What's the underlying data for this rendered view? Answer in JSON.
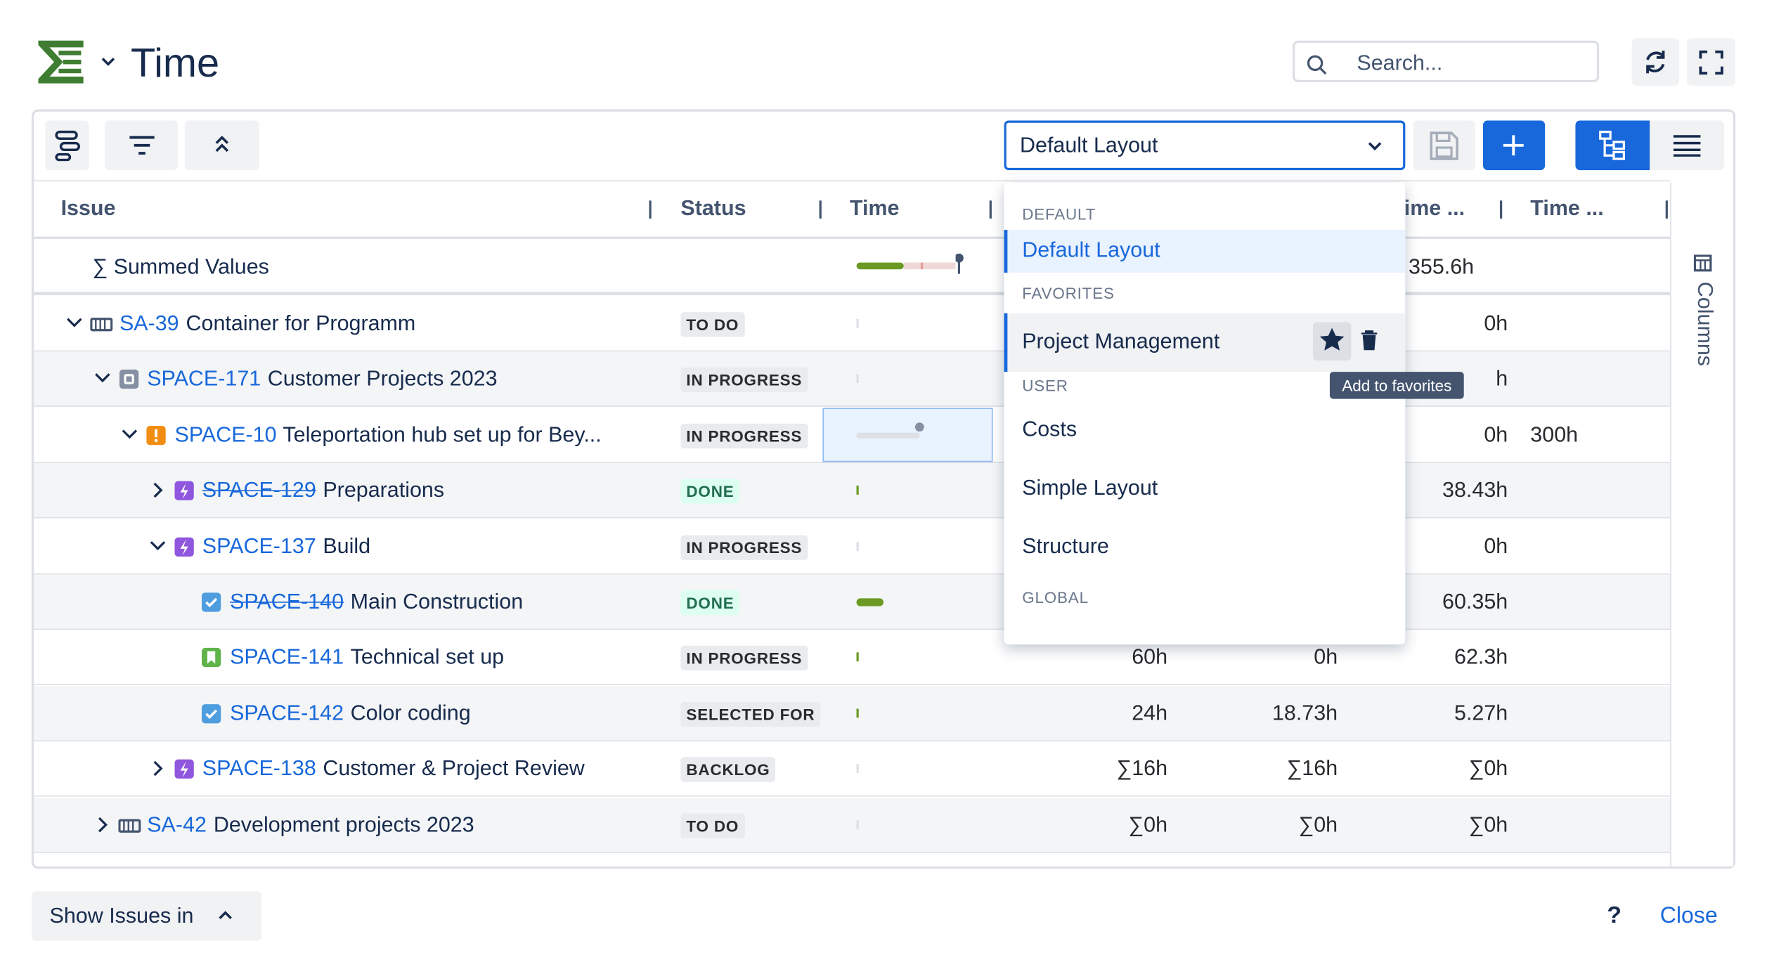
{
  "header": {
    "title": "Time",
    "search_placeholder": "Search..."
  },
  "toolbar": {
    "layout_select": "Default Layout"
  },
  "table": {
    "columns": [
      "Issue",
      "Status",
      "Time",
      "ime ...",
      "Time ..."
    ],
    "summary_row": {
      "label": "∑ Summed Values",
      "c3": "355.6h"
    },
    "rows": [
      {
        "key": "SA-39",
        "summary": "Container for Programm",
        "status": "TO DO",
        "c3": "0h"
      },
      {
        "key": "SPACE-171",
        "summary": "Customer Projects 2023",
        "status": "IN PROGRESS",
        "c3": "h"
      },
      {
        "key": "SPACE-10",
        "summary": "Teleportation hub set up for Bey...",
        "status": "IN PROGRESS",
        "c3": "0h",
        "c4": "300h"
      },
      {
        "key": "SPACE-129",
        "summary": "Preparations",
        "status": "DONE",
        "c3": "38.43h"
      },
      {
        "key": "SPACE-137",
        "summary": "Build",
        "status": "IN PROGRESS",
        "c3": "0h"
      },
      {
        "key": "SPACE-140",
        "summary": "Main Construction",
        "status": "DONE",
        "c3": "60.35h"
      },
      {
        "key": "SPACE-141",
        "summary": "Technical set up",
        "status": "IN PROGRESS",
        "c1": "60h",
        "c2": "0h",
        "c3": "62.3h"
      },
      {
        "key": "SPACE-142",
        "summary": "Color coding",
        "status": "SELECTED FOR",
        "c1": "24h",
        "c2": "18.73h",
        "c3": "5.27h"
      },
      {
        "key": "SPACE-138",
        "summary": "Customer & Project Review",
        "status": "BACKLOG",
        "c1": "∑16h",
        "c2": "∑16h",
        "c3": "∑0h"
      },
      {
        "key": "SA-42",
        "summary": "Development projects 2023",
        "status": "TO DO",
        "c1": "∑0h",
        "c2": "∑0h",
        "c3": "∑0h"
      }
    ]
  },
  "side_panel": {
    "label": "Columns"
  },
  "dropdown": {
    "sections": [
      {
        "heading": "DEFAULT",
        "items": [
          "Default Layout"
        ]
      },
      {
        "heading": "FAVORITES",
        "items": [
          "Project Management"
        ]
      },
      {
        "heading": "USER",
        "items": [
          "Costs",
          "Simple Layout",
          "Structure"
        ]
      },
      {
        "heading": "GLOBAL",
        "items": []
      }
    ],
    "tooltip": "Add to favorites"
  },
  "footer": {
    "show_issues": "Show Issues in",
    "help": "?",
    "close": "Close"
  }
}
